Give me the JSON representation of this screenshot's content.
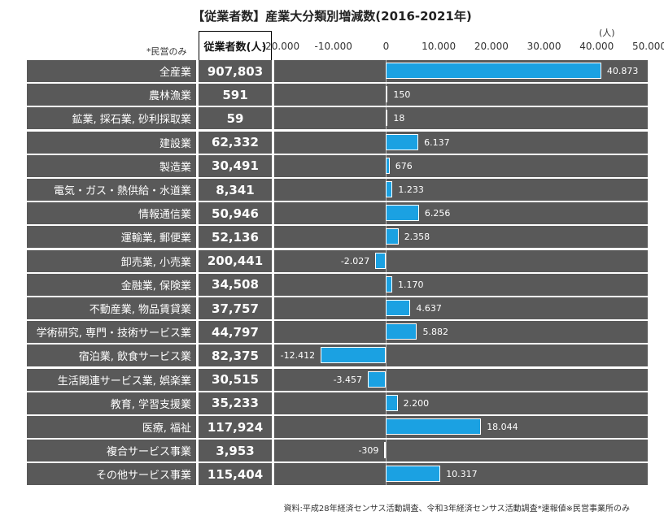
{
  "header": {
    "title": "【従業者数】産業大分類別増減数(2016-2021年)",
    "unit": "(人)",
    "note": "*民営のみ",
    "employee_column_header": "従業者数(人)"
  },
  "source": "資料:平成28年経済センサス活動調査、令和3年経済センサス活動調査*速報値※民営事業所のみ",
  "chart_data": {
    "type": "bar",
    "orientation": "horizontal",
    "title": "【従業者数】産業大分類別増減数(2016-2021年)",
    "xlim": [
      -20000,
      50000
    ],
    "x_ticks": [
      -20000,
      -10000,
      0,
      10000,
      20000,
      30000,
      40000,
      50000
    ],
    "x_tick_labels": [
      "-20.000",
      "-10.000",
      "0",
      "10.000",
      "20.000",
      "30.000",
      "40.000",
      "50.000"
    ],
    "categories": [
      "全産業",
      "農林漁業",
      "鉱業, 採石業, 砂利採取業",
      "建設業",
      "製造業",
      "電気・ガス・熱供給・水道業",
      "情報通信業",
      "運輸業, 郵便業",
      "卸売業, 小売業",
      "金融業, 保険業",
      "不動産業, 物品賃貸業",
      "学術研究, 専門・技術サービス業",
      "宿泊業, 飲食サービス業",
      "生活関連サービス業, 娯楽業",
      "教育, 学習支援業",
      "医療, 福祉",
      "複合サービス事業",
      "その他サービス事業"
    ],
    "employees": [
      "907,803",
      "591",
      "59",
      "62,332",
      "30,491",
      "8,341",
      "50,946",
      "52,136",
      "200,441",
      "34,508",
      "37,757",
      "44,797",
      "82,375",
      "30,515",
      "35,233",
      "117,924",
      "3,953",
      "115,404"
    ],
    "values": [
      40873,
      150,
      18,
      6137,
      676,
      1233,
      6256,
      2358,
      -2027,
      1170,
      4637,
      5882,
      -12412,
      -3457,
      2200,
      18044,
      -309,
      10317
    ],
    "value_labels": [
      "40.873",
      "150",
      "18",
      "6.137",
      "676",
      "1.233",
      "6.256",
      "2.358",
      "-2.027",
      "1.170",
      "4.637",
      "5.882",
      "-12.412",
      "-3.457",
      "2.200",
      "18.044",
      "-309",
      "10.317"
    ],
    "bar_color": "#1ba1e2",
    "row_color": "#595959",
    "grid": false
  }
}
